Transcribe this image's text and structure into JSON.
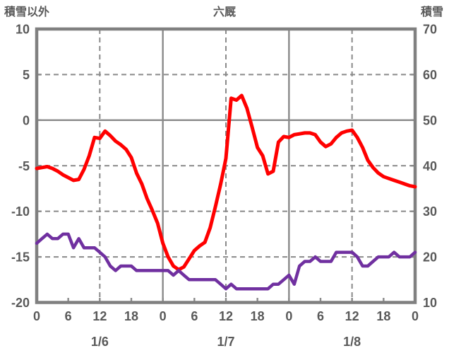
{
  "header": {
    "left_axis_title": "積雪以外",
    "title": "六厩",
    "right_axis_title": "積雪"
  },
  "colors": {
    "frame": "#808080",
    "grid": "#8a8a8a",
    "text": "#595959",
    "red_series": "#ff0000",
    "purple_series": "#7030a0",
    "background": "#ffffff"
  },
  "chart_data": {
    "type": "line",
    "title": "六厩",
    "left_axis_label": "積雪以外",
    "right_axis_label": "積雪",
    "x_total_hours": 72,
    "hour_label_step": 6,
    "hour_labels": [
      "0",
      "6",
      "12",
      "18",
      "0",
      "6",
      "12",
      "18",
      "0",
      "6",
      "12",
      "18",
      "0"
    ],
    "day_labels": [
      "1/6",
      "1/7",
      "1/8"
    ],
    "left_axis": {
      "min": -20,
      "max": 10,
      "step": 5,
      "ticks": [
        10,
        5,
        0,
        -5,
        -10,
        -15,
        -20
      ]
    },
    "right_axis": {
      "min": 10,
      "max": 70,
      "step": 10,
      "ticks": [
        70,
        60,
        50,
        40,
        30,
        20,
        10
      ]
    },
    "grid": {
      "h_lines": {
        "dashed_at": [
          5,
          -5,
          -10,
          -15
        ],
        "solid_at": [
          0
        ]
      },
      "v_lines": {
        "dashed_at_hours": [
          12,
          36,
          60
        ],
        "solid_at_hours": [
          24,
          48
        ]
      }
    },
    "series": [
      {
        "name": "積雪以外",
        "axis": "left",
        "color": "#ff0000",
        "width": 5,
        "values": [
          -5.3,
          -5.2,
          -5.1,
          -5.3,
          -5.6,
          -6.0,
          -6.3,
          -6.6,
          -6.5,
          -5.4,
          -3.9,
          -1.9,
          -2.0,
          -1.2,
          -1.7,
          -2.3,
          -2.7,
          -3.2,
          -4.1,
          -5.8,
          -7.0,
          -8.6,
          -9.9,
          -11.3,
          -13.5,
          -15.0,
          -16.0,
          -16.4,
          -16.1,
          -15.2,
          -14.3,
          -13.8,
          -13.4,
          -11.8,
          -9.5,
          -7.0,
          -4.2,
          2.4,
          2.2,
          2.7,
          1.3,
          -0.8,
          -3.0,
          -3.9,
          -5.9,
          -5.6,
          -2.4,
          -1.8,
          -1.9,
          -1.6,
          -1.5,
          -1.4,
          -1.4,
          -1.6,
          -2.4,
          -2.9,
          -2.6,
          -1.9,
          -1.4,
          -1.2,
          -1.1,
          -1.9,
          -3.0,
          -4.4,
          -5.2,
          -5.8,
          -6.2,
          -6.4,
          -6.6,
          -6.8,
          -7.0,
          -7.2,
          -7.3
        ]
      },
      {
        "name": "積雪",
        "axis": "right",
        "color": "#7030a0",
        "width": 4.5,
        "values": [
          23,
          24,
          25,
          24,
          24,
          25,
          25,
          22,
          24,
          22,
          22,
          22,
          21,
          20,
          18,
          17,
          18,
          18,
          18,
          17,
          17,
          17,
          17,
          17,
          17,
          17,
          16,
          17,
          16,
          15,
          15,
          15,
          15,
          15,
          15,
          14,
          13,
          14,
          13,
          13,
          13,
          13,
          13,
          13,
          13,
          14,
          14,
          15,
          16,
          14,
          18,
          19,
          19,
          20,
          19,
          19,
          19,
          21,
          21,
          21,
          21,
          20,
          18,
          18,
          19,
          20,
          20,
          20,
          21,
          20,
          20,
          20,
          21
        ]
      }
    ]
  }
}
